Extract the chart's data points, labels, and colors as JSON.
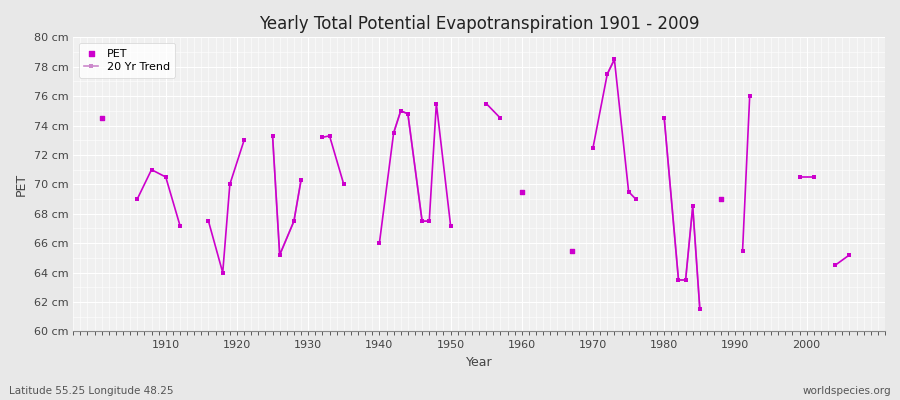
{
  "title": "Yearly Total Potential Evapotranspiration 1901 - 2009",
  "xlabel": "Year",
  "ylabel": "PET",
  "subtitle": "Latitude 55.25 Longitude 48.25",
  "watermark": "worldspecies.org",
  "ylim": [
    60,
    80
  ],
  "yticks": [
    60,
    62,
    64,
    66,
    68,
    70,
    72,
    74,
    76,
    78,
    80
  ],
  "ytick_labels": [
    "60 cm",
    "62 cm",
    "64 cm",
    "66 cm",
    "68 cm",
    "70 cm",
    "72 cm",
    "74 cm",
    "76 cm",
    "78 cm",
    "80 cm"
  ],
  "xlim": [
    1897,
    2011
  ],
  "xticks": [
    1910,
    1920,
    1930,
    1940,
    1950,
    1960,
    1970,
    1980,
    1990,
    2000
  ],
  "pet_color": "#CC00CC",
  "trend_color": "#CC88CC",
  "bg_color": "#E8E8E8",
  "plot_bg": "#F0F0F0",
  "grid_color": "#FFFFFF",
  "pet_data": [
    [
      1901,
      74.5
    ],
    [
      1906,
      69.0
    ],
    [
      1908,
      71.0
    ],
    [
      1910,
      70.5
    ],
    [
      1912,
      67.2
    ],
    [
      1916,
      67.5
    ],
    [
      1918,
      64.0
    ],
    [
      1919,
      70.0
    ],
    [
      1921,
      73.0
    ],
    [
      1925,
      73.3
    ],
    [
      1926,
      65.2
    ],
    [
      1928,
      67.5
    ],
    [
      1929,
      70.3
    ],
    [
      1932,
      73.2
    ],
    [
      1933,
      73.3
    ],
    [
      1935,
      70.0
    ],
    [
      1940,
      66.0
    ],
    [
      1942,
      73.5
    ],
    [
      1943,
      75.0
    ],
    [
      1944,
      74.8
    ],
    [
      1946,
      67.5
    ],
    [
      1947,
      67.5
    ],
    [
      1948,
      75.5
    ],
    [
      1950,
      67.2
    ],
    [
      1955,
      75.5
    ],
    [
      1957,
      74.5
    ],
    [
      1960,
      69.5
    ],
    [
      1967,
      65.5
    ],
    [
      1970,
      72.5
    ],
    [
      1972,
      77.5
    ],
    [
      1973,
      78.5
    ],
    [
      1975,
      69.5
    ],
    [
      1976,
      69.0
    ],
    [
      1980,
      74.5
    ],
    [
      1982,
      63.5
    ],
    [
      1983,
      63.5
    ],
    [
      1984,
      68.5
    ],
    [
      1985,
      61.5
    ],
    [
      1988,
      69.0
    ],
    [
      1991,
      65.5
    ],
    [
      1992,
      76.0
    ],
    [
      1999,
      70.5
    ],
    [
      2001,
      70.5
    ],
    [
      2004,
      64.5
    ],
    [
      2006,
      65.2
    ]
  ],
  "trend_data": [
    [
      1925,
      73.3
    ],
    [
      1926,
      65.2
    ],
    [
      1928,
      67.5
    ],
    [
      1929,
      70.3
    ],
    [
      1942,
      73.5
    ],
    [
      1943,
      75.0
    ],
    [
      1944,
      74.8
    ],
    [
      1946,
      67.5
    ],
    [
      1947,
      67.5
    ],
    [
      1972,
      77.5
    ],
    [
      1973,
      78.5
    ],
    [
      1980,
      74.5
    ],
    [
      1982,
      63.5
    ],
    [
      1983,
      63.5
    ],
    [
      1984,
      68.5
    ],
    [
      1985,
      61.5
    ]
  ],
  "legend_pet": "PET",
  "legend_trend": "20 Yr Trend"
}
